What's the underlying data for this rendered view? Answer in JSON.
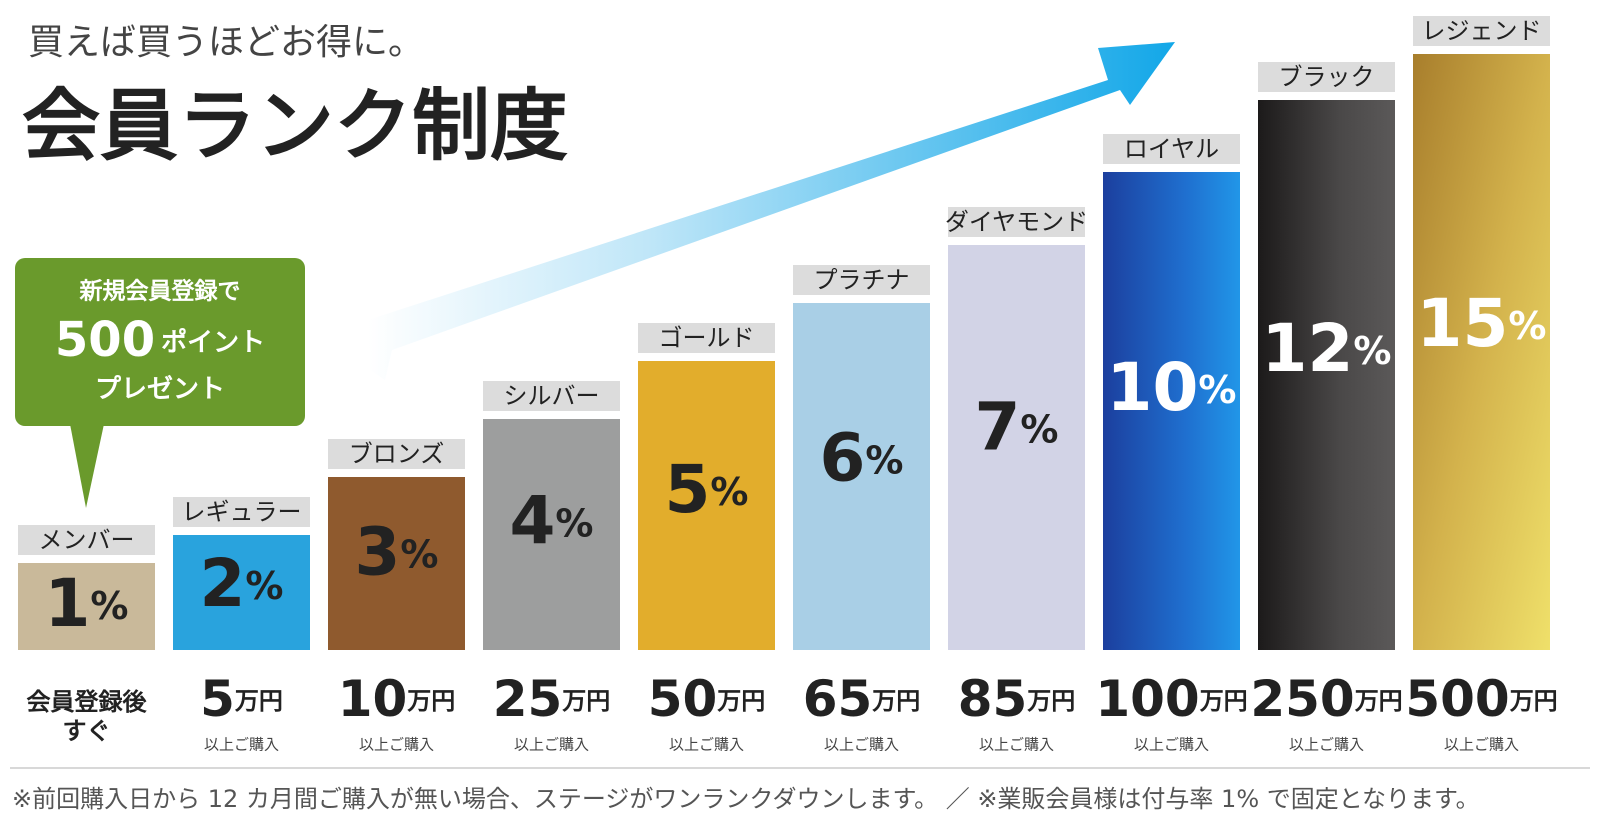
{
  "tagline": "買えば買うほどお得に。",
  "title": "会員ランク制度",
  "badge": {
    "lines": [
      "新規会員登録で",
      "500",
      "ポイント",
      "プレゼント"
    ]
  },
  "ranks": [
    {
      "name": "メンバー",
      "rate": 1,
      "rate_label": "1%",
      "threshold": {
        "lines": [
          "会員登録後",
          "すぐ"
        ]
      }
    },
    {
      "name": "レギュラー",
      "rate": 2,
      "rate_label": "2%",
      "threshold": {
        "amount": "5",
        "unit": "万円",
        "note": "以上ご購入"
      }
    },
    {
      "name": "ブロンズ",
      "rate": 3,
      "rate_label": "3%",
      "threshold": {
        "amount": "10",
        "unit": "万円",
        "note": "以上ご購入"
      }
    },
    {
      "name": "シルバー",
      "rate": 4,
      "rate_label": "4%",
      "threshold": {
        "amount": "25",
        "unit": "万円",
        "note": "以上ご購入"
      }
    },
    {
      "name": "ゴールド",
      "rate": 5,
      "rate_label": "5%",
      "threshold": {
        "amount": "50",
        "unit": "万円",
        "note": "以上ご購入"
      }
    },
    {
      "name": "プラチナ",
      "rate": 6,
      "rate_label": "6%",
      "threshold": {
        "amount": "65",
        "unit": "万円",
        "note": "以上ご購入"
      }
    },
    {
      "name": "ダイヤモンド",
      "rate": 7,
      "rate_label": "7%",
      "threshold": {
        "amount": "85",
        "unit": "万円",
        "note": "以上ご購入"
      }
    },
    {
      "name": "ロイヤル",
      "rate": 10,
      "rate_label": "10%",
      "threshold": {
        "amount": "100",
        "unit": "万円",
        "note": "以上ご購入"
      }
    },
    {
      "name": "ブラック",
      "rate": 12,
      "rate_label": "12%",
      "threshold": {
        "amount": "250",
        "unit": "万円",
        "note": "以上ご購入"
      }
    },
    {
      "name": "レジェンド",
      "rate": 15,
      "rate_label": "15%",
      "threshold": {
        "amount": "500",
        "unit": "万円",
        "note": "以上ご購入"
      }
    }
  ],
  "footnote": "※前回購入日から 12 カ月間ご購入が無い場合、ステージがワンランクダウンします。 ／ ※業販会員様は付与率 1% で固定となります。"
}
